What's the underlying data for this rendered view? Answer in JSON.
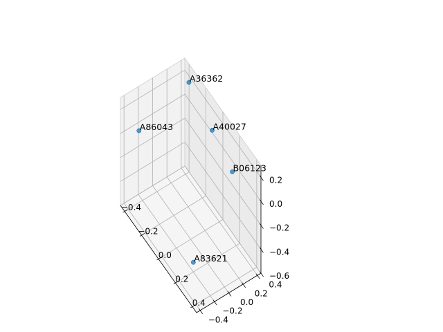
{
  "chart_data": {
    "type": "scatter",
    "projection": "3d",
    "title": "",
    "xlabel": "",
    "ylabel": "",
    "zlabel": "",
    "xlim": [
      -0.45,
      0.45
    ],
    "ylim": [
      -0.45,
      0.45
    ],
    "zlim": [
      -0.6,
      0.3
    ],
    "x_ticks": [
      -0.4,
      -0.2,
      0.0,
      0.2,
      0.4
    ],
    "x_tick_labels": [
      "−0.4",
      "−0.2",
      "0.0",
      "0.2",
      "0.4"
    ],
    "y_ticks": [
      -0.4,
      -0.2,
      0.0,
      0.2,
      0.4
    ],
    "y_tick_labels": [
      "−0.4",
      "−0.2",
      "0.0",
      "0.2",
      "0.4"
    ],
    "z_ticks": [
      -0.6,
      -0.4,
      -0.2,
      0.0,
      0.2
    ],
    "z_tick_labels": [
      "−0.6",
      "−0.4",
      "−0.2",
      "0.0",
      "0.2"
    ],
    "grid": true,
    "point_color": "#1f77b4",
    "points": [
      {
        "label": "A36362",
        "x": -0.3,
        "y": 0.33,
        "z": 0.29
      },
      {
        "label": "A40027",
        "x": 0.0,
        "y": 0.3,
        "z": 0.2
      },
      {
        "label": "B06123",
        "x": 0.28,
        "y": 0.25,
        "z": 0.15
      },
      {
        "label": "A86043",
        "x": -0.4,
        "y": -0.25,
        "z": 0.0
      },
      {
        "label": "A83621",
        "x": 0.2,
        "y": -0.2,
        "z": -0.52
      }
    ]
  }
}
